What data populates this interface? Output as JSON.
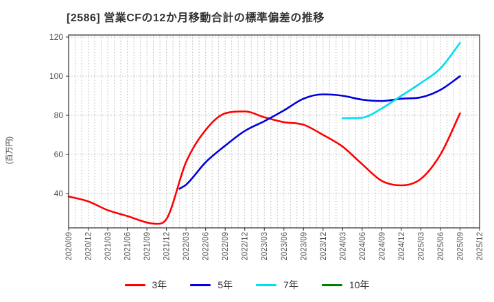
{
  "header": {
    "title": "[2586]  営業CFの12か月移動合計の標準偏差の推移"
  },
  "chart_data": {
    "type": "line",
    "title": "[2586]  営業CFの12か月移動合計の標準偏差の推移",
    "xlabel": "",
    "ylabel": "(百万円)",
    "x_unit": "months since 2020/09",
    "x_tick_labels": [
      "2020/09",
      "2020/12",
      "2021/03",
      "2021/06",
      "2021/09",
      "2021/12",
      "2022/03",
      "2022/06",
      "2022/09",
      "2022/12",
      "2023/03",
      "2023/06",
      "2023/09",
      "2023/12",
      "2024/03",
      "2024/06",
      "2024/09",
      "2024/12",
      "2025/03",
      "2025/06",
      "2025/09",
      "2025/12"
    ],
    "months_per_tick": 3,
    "x_total_months": 63,
    "yticks": [
      40,
      60,
      80,
      100,
      120
    ],
    "ylim": [
      22.5,
      121
    ],
    "grid": {
      "horizontal": "dotted at yticks",
      "vertical": "dotted monthly"
    },
    "legend_position": "bottom-center",
    "colors": {
      "grid": "#b5b5b5",
      "spine": "#2a2a2a",
      "tick_text": "#4f4f4f"
    },
    "series": [
      {
        "name": "3年",
        "color": "#ff0000",
        "points": [
          [
            0,
            38.5
          ],
          [
            3,
            36
          ],
          [
            6,
            31.5
          ],
          [
            9,
            28.5
          ],
          [
            12,
            25.2
          ],
          [
            13.5,
            24.5
          ],
          [
            15,
            27
          ],
          [
            18,
            56
          ],
          [
            21,
            72.5
          ],
          [
            24,
            81
          ],
          [
            27,
            82
          ],
          [
            30,
            79
          ],
          [
            33,
            76.5
          ],
          [
            36,
            75.2
          ],
          [
            39,
            70
          ],
          [
            42,
            64
          ],
          [
            45,
            55
          ],
          [
            48,
            46.5
          ],
          [
            51,
            44.2
          ],
          [
            54,
            47.5
          ],
          [
            57,
            60
          ],
          [
            60,
            81
          ]
        ]
      },
      {
        "name": "5年",
        "color": "#0000dd",
        "points": [
          [
            17,
            42.5
          ],
          [
            18,
            44.5
          ],
          [
            21,
            56
          ],
          [
            24,
            64.5
          ],
          [
            27,
            72
          ],
          [
            30,
            77
          ],
          [
            33,
            82.5
          ],
          [
            36,
            88.5
          ],
          [
            39,
            90.7
          ],
          [
            42,
            90
          ],
          [
            45,
            88
          ],
          [
            48,
            87.3
          ],
          [
            51,
            88.5
          ],
          [
            54,
            89.2
          ],
          [
            57,
            93
          ],
          [
            60,
            100
          ]
        ]
      },
      {
        "name": "7年",
        "color": "#00dff0",
        "points": [
          [
            42,
            78.5
          ],
          [
            45,
            78.8
          ],
          [
            48,
            83.5
          ],
          [
            51,
            90
          ],
          [
            54,
            96.5
          ],
          [
            57,
            104
          ],
          [
            60,
            117
          ]
        ]
      },
      {
        "name": "10年",
        "color": "#008000",
        "points": []
      }
    ]
  }
}
